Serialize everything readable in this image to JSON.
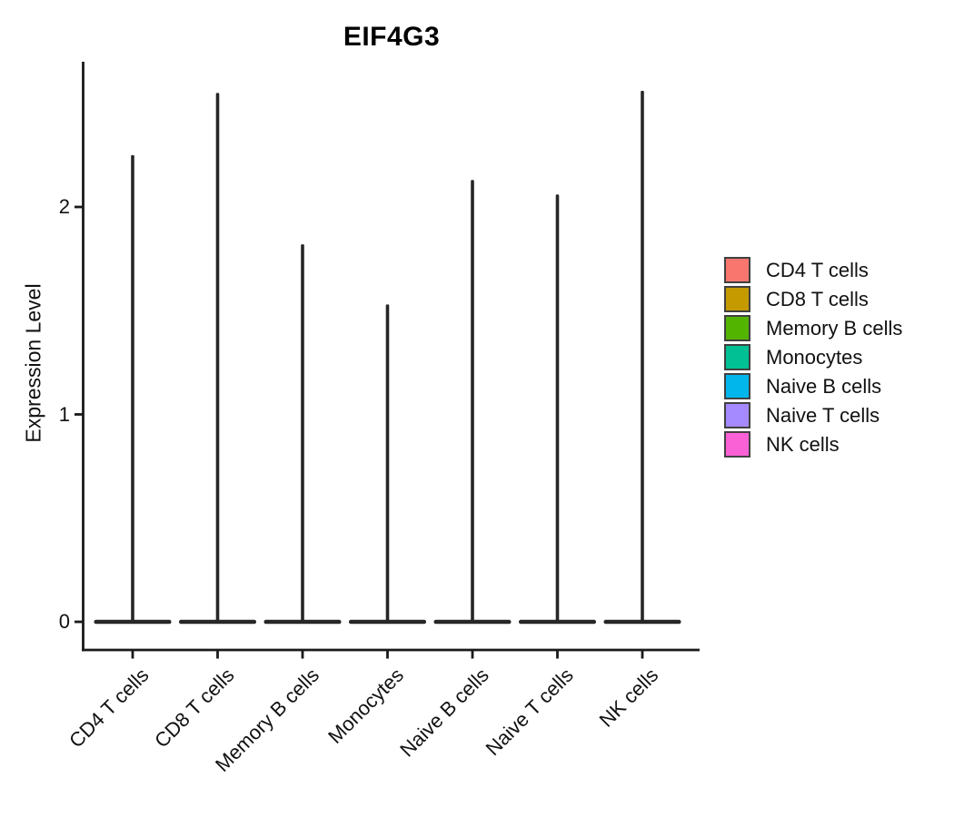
{
  "chart_data": {
    "type": "violin",
    "title": "EIF4G3",
    "ylabel": "Expression Level",
    "xlabel": "",
    "ylim": [
      -0.14,
      2.7
    ],
    "yticks": [
      0,
      1,
      2
    ],
    "grid": false,
    "legend_position": "right",
    "x_tick_angle": 45,
    "violin_outline_color": "#262626",
    "axis_color": "#1a1a1a",
    "categories": [
      "CD4 T cells",
      "CD8 T cells",
      "Memory B cells",
      "Monocytes",
      "Naive B cells",
      "Naive T cells",
      "NK cells"
    ],
    "series": [
      {
        "name": "CD4 T cells",
        "color": "#F8766D",
        "min": 0,
        "max": 2.25,
        "zero_inflated": true
      },
      {
        "name": "CD8 T cells",
        "color": "#C49A00",
        "min": 0,
        "max": 2.55,
        "zero_inflated": true
      },
      {
        "name": "Memory B cells",
        "color": "#53B400",
        "min": 0,
        "max": 1.82,
        "zero_inflated": true
      },
      {
        "name": "Monocytes",
        "color": "#00C094",
        "min": 0,
        "max": 1.53,
        "zero_inflated": true
      },
      {
        "name": "Naive B cells",
        "color": "#00B6EB",
        "min": 0,
        "max": 2.13,
        "zero_inflated": true
      },
      {
        "name": "Naive T cells",
        "color": "#A58AFF",
        "min": 0,
        "max": 2.06,
        "zero_inflated": true
      },
      {
        "name": "NK cells",
        "color": "#FB61D7",
        "min": 0,
        "max": 2.56,
        "zero_inflated": true
      }
    ]
  }
}
